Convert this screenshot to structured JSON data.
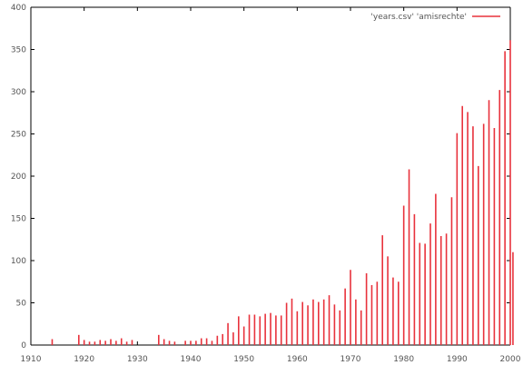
{
  "chart_data": {
    "type": "bar",
    "title": "",
    "xlabel": "",
    "ylabel": "",
    "xlim": [
      1910,
      2000
    ],
    "ylim": [
      0,
      400
    ],
    "grid": false,
    "legend_position": "top-right",
    "series": [
      {
        "name": "'years.csv' 'amisrechte'",
        "color": "#e8323c",
        "points": [
          [
            1914,
            7
          ],
          [
            1919,
            12
          ],
          [
            1920,
            6
          ],
          [
            1921,
            4
          ],
          [
            1922,
            4
          ],
          [
            1923,
            6
          ],
          [
            1924,
            5
          ],
          [
            1925,
            7
          ],
          [
            1926,
            5
          ],
          [
            1927,
            8
          ],
          [
            1928,
            4
          ],
          [
            1929,
            6
          ],
          [
            1934,
            12
          ],
          [
            1935,
            7
          ],
          [
            1936,
            5
          ],
          [
            1937,
            4
          ],
          [
            1939,
            5
          ],
          [
            1940,
            5
          ],
          [
            1941,
            5
          ],
          [
            1942,
            8
          ],
          [
            1943,
            8
          ],
          [
            1944,
            5
          ],
          [
            1945,
            11
          ],
          [
            1946,
            13
          ],
          [
            1947,
            26
          ],
          [
            1948,
            15
          ],
          [
            1949,
            34
          ],
          [
            1950,
            22
          ],
          [
            1951,
            36
          ],
          [
            1952,
            36
          ],
          [
            1953,
            34
          ],
          [
            1954,
            37
          ],
          [
            1955,
            38
          ],
          [
            1956,
            35
          ],
          [
            1957,
            35
          ],
          [
            1958,
            50
          ],
          [
            1959,
            55
          ],
          [
            1960,
            40
          ],
          [
            1961,
            51
          ],
          [
            1962,
            47
          ],
          [
            1963,
            54
          ],
          [
            1964,
            51
          ],
          [
            1965,
            54
          ],
          [
            1966,
            59
          ],
          [
            1967,
            48
          ],
          [
            1968,
            41
          ],
          [
            1969,
            67
          ],
          [
            1970,
            89
          ],
          [
            1971,
            54
          ],
          [
            1972,
            41
          ],
          [
            1973,
            85
          ],
          [
            1974,
            71
          ],
          [
            1975,
            75
          ],
          [
            1976,
            130
          ],
          [
            1977,
            105
          ],
          [
            1978,
            80
          ],
          [
            1979,
            75
          ],
          [
            1980,
            165
          ],
          [
            1981,
            208
          ],
          [
            1982,
            155
          ],
          [
            1983,
            121
          ],
          [
            1984,
            120
          ],
          [
            1985,
            144
          ],
          [
            1986,
            179
          ],
          [
            1987,
            129
          ],
          [
            1988,
            132
          ],
          [
            1989,
            175
          ],
          [
            1990,
            251
          ],
          [
            1991,
            283
          ],
          [
            1992,
            276
          ],
          [
            1993,
            259
          ],
          [
            1994,
            212
          ],
          [
            1995,
            262
          ],
          [
            1996,
            290
          ],
          [
            1997,
            257
          ],
          [
            1998,
            302
          ],
          [
            1999,
            348
          ],
          [
            2000,
            361
          ],
          [
            2000.5,
            110
          ]
        ]
      }
    ],
    "x_ticks": [
      "1910",
      "1920",
      "1930",
      "1940",
      "1950",
      "1960",
      "1970",
      "1980",
      "1990",
      "2000"
    ],
    "y_ticks": [
      "0",
      "50",
      "100",
      "150",
      "200",
      "250",
      "300",
      "350",
      "400"
    ]
  }
}
